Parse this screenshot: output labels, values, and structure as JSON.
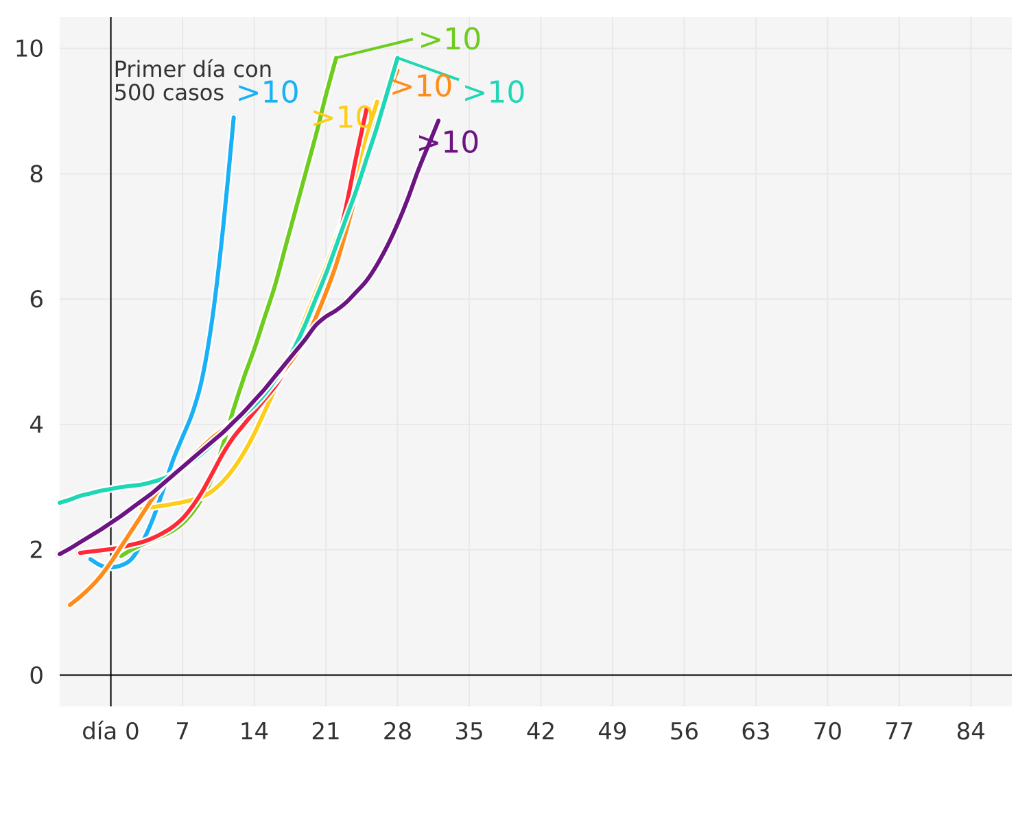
{
  "chart_data": {
    "type": "line",
    "title": "",
    "xlabel": "",
    "ylabel": "",
    "xlim": [
      -5,
      88
    ],
    "ylim": [
      -0.5,
      10.5
    ],
    "grid": true,
    "x_ticks": [
      {
        "value": 0,
        "label": "día 0"
      },
      {
        "value": 7,
        "label": "7"
      },
      {
        "value": 14,
        "label": "14"
      },
      {
        "value": 21,
        "label": "21"
      },
      {
        "value": 28,
        "label": "28"
      },
      {
        "value": 35,
        "label": "35"
      },
      {
        "value": 42,
        "label": "42"
      },
      {
        "value": 49,
        "label": "49"
      },
      {
        "value": 56,
        "label": "56"
      },
      {
        "value": 63,
        "label": "63"
      },
      {
        "value": 70,
        "label": "70"
      },
      {
        "value": 77,
        "label": "77"
      },
      {
        "value": 84,
        "label": "84"
      }
    ],
    "y_ticks": [
      {
        "value": 0,
        "label": "0"
      },
      {
        "value": 2,
        "label": "2"
      },
      {
        "value": 4,
        "label": "4"
      },
      {
        "value": 6,
        "label": "6"
      },
      {
        "value": 8,
        "label": "8"
      },
      {
        "value": 10,
        "label": "10"
      }
    ],
    "annotation": {
      "lines": [
        "Primer día con",
        "500 casos"
      ],
      "x": 0
    },
    "series": [
      {
        "color": "#1ab0f5",
        "label": ">10",
        "points": [
          [
            -2,
            1.85
          ],
          [
            -1,
            1.75
          ],
          [
            0,
            1.72
          ],
          [
            1,
            1.75
          ],
          [
            2,
            1.85
          ],
          [
            3,
            2.1
          ],
          [
            4,
            2.45
          ],
          [
            5,
            2.9
          ],
          [
            6,
            3.4
          ],
          [
            7,
            3.8
          ],
          [
            8,
            4.2
          ],
          [
            9,
            4.8
          ],
          [
            10,
            5.8
          ],
          [
            11,
            7.2
          ],
          [
            12,
            8.9
          ]
        ],
        "label_at": [
          12.2,
          9.3
        ]
      },
      {
        "color": "#6dcc1e",
        "label": ">10",
        "points": [
          [
            1,
            1.9
          ],
          [
            2,
            2.0
          ],
          [
            3,
            2.08
          ],
          [
            4,
            2.15
          ],
          [
            5,
            2.22
          ],
          [
            6,
            2.3
          ],
          [
            7,
            2.42
          ],
          [
            8,
            2.6
          ],
          [
            9,
            2.85
          ],
          [
            10,
            3.2
          ],
          [
            11,
            3.7
          ],
          [
            12,
            4.25
          ],
          [
            13,
            4.75
          ],
          [
            14,
            5.2
          ],
          [
            15,
            5.7
          ],
          [
            16,
            6.2
          ],
          [
            17,
            6.8
          ],
          [
            18,
            7.4
          ],
          [
            19,
            8.0
          ],
          [
            20,
            8.6
          ],
          [
            21,
            9.25
          ],
          [
            22,
            9.85
          ]
        ],
        "leader": [
          [
            22,
            9.85
          ],
          [
            29.5,
            10.15
          ]
        ],
        "label_at": [
          30,
          10.15
        ]
      },
      {
        "color": "#ffcc1a",
        "label": ">10",
        "points": [
          [
            3,
            2.65
          ],
          [
            4,
            2.68
          ],
          [
            5,
            2.7
          ],
          [
            6,
            2.73
          ],
          [
            7,
            2.76
          ],
          [
            8,
            2.8
          ],
          [
            9,
            2.85
          ],
          [
            10,
            2.95
          ],
          [
            11,
            3.1
          ],
          [
            12,
            3.3
          ],
          [
            13,
            3.55
          ],
          [
            14,
            3.85
          ],
          [
            15,
            4.2
          ],
          [
            16,
            4.55
          ],
          [
            17,
            4.9
          ],
          [
            18,
            5.3
          ],
          [
            19,
            5.7
          ],
          [
            20,
            6.1
          ],
          [
            21,
            6.5
          ],
          [
            22,
            6.95
          ],
          [
            23,
            7.45
          ],
          [
            24,
            8.0
          ],
          [
            25,
            8.6
          ],
          [
            26,
            9.15
          ]
        ],
        "label_at": [
          19.5,
          8.9
        ]
      },
      {
        "color": "#ff2a35",
        "label": "",
        "points": [
          [
            -3,
            1.95
          ],
          [
            -2,
            1.97
          ],
          [
            -1,
            1.99
          ],
          [
            0,
            2.01
          ],
          [
            1,
            2.04
          ],
          [
            2,
            2.08
          ],
          [
            3,
            2.12
          ],
          [
            4,
            2.18
          ],
          [
            5,
            2.26
          ],
          [
            6,
            2.36
          ],
          [
            7,
            2.5
          ],
          [
            8,
            2.7
          ],
          [
            9,
            2.95
          ],
          [
            10,
            3.25
          ],
          [
            11,
            3.55
          ],
          [
            12,
            3.8
          ],
          [
            13,
            4.0
          ],
          [
            14,
            4.2
          ],
          [
            15,
            4.4
          ],
          [
            16,
            4.6
          ],
          [
            17,
            4.85
          ],
          [
            18,
            5.15
          ],
          [
            19,
            5.45
          ],
          [
            20,
            5.8
          ],
          [
            21,
            6.25
          ],
          [
            22,
            6.8
          ],
          [
            23,
            7.5
          ],
          [
            24,
            8.3
          ],
          [
            25,
            9.05
          ]
        ]
      },
      {
        "color": "#ff8c1a",
        "label": ">10",
        "points": [
          [
            -4,
            1.12
          ],
          [
            -3,
            1.25
          ],
          [
            -2,
            1.4
          ],
          [
            -1,
            1.58
          ],
          [
            0,
            1.8
          ],
          [
            1,
            2.05
          ],
          [
            2,
            2.3
          ],
          [
            3,
            2.55
          ],
          [
            4,
            2.8
          ],
          [
            5,
            3.02
          ],
          [
            6,
            3.2
          ],
          [
            7,
            3.35
          ],
          [
            8,
            3.5
          ],
          [
            9,
            3.65
          ],
          [
            10,
            3.8
          ],
          [
            11,
            3.92
          ],
          [
            12,
            4.05
          ],
          [
            13,
            4.2
          ],
          [
            14,
            4.35
          ],
          [
            15,
            4.5
          ],
          [
            16,
            4.68
          ],
          [
            17,
            4.88
          ],
          [
            18,
            5.1
          ],
          [
            19,
            5.35
          ],
          [
            20,
            5.7
          ],
          [
            21,
            6.1
          ],
          [
            22,
            6.55
          ],
          [
            23,
            7.1
          ],
          [
            24,
            7.7
          ],
          [
            25,
            8.3
          ],
          [
            26,
            8.85
          ],
          [
            27,
            9.25
          ],
          [
            28,
            9.65
          ]
        ],
        "label_at": [
          27.2,
          9.4
        ]
      },
      {
        "color": "#1fd6b5",
        "label": ">10",
        "points": [
          [
            -5,
            2.75
          ],
          [
            -4,
            2.8
          ],
          [
            -3,
            2.86
          ],
          [
            -2,
            2.9
          ],
          [
            -1,
            2.94
          ],
          [
            0,
            2.97
          ],
          [
            1,
            3.0
          ],
          [
            2,
            3.02
          ],
          [
            3,
            3.04
          ],
          [
            4,
            3.08
          ],
          [
            5,
            3.13
          ],
          [
            6,
            3.2
          ],
          [
            7,
            3.3
          ],
          [
            8,
            3.42
          ],
          [
            9,
            3.55
          ],
          [
            10,
            3.7
          ],
          [
            11,
            3.85
          ],
          [
            12,
            4.0
          ],
          [
            13,
            4.15
          ],
          [
            14,
            4.3
          ],
          [
            15,
            4.48
          ],
          [
            16,
            4.7
          ],
          [
            17,
            4.95
          ],
          [
            18,
            5.25
          ],
          [
            19,
            5.6
          ],
          [
            20,
            6.0
          ],
          [
            21,
            6.4
          ],
          [
            22,
            6.85
          ],
          [
            23,
            7.3
          ],
          [
            24,
            7.75
          ],
          [
            25,
            8.25
          ],
          [
            26,
            8.75
          ],
          [
            27,
            9.3
          ],
          [
            28,
            9.85
          ]
        ],
        "leader": [
          [
            28,
            9.85
          ],
          [
            34,
            9.5
          ]
        ],
        "label_at": [
          34.3,
          9.3
        ]
      },
      {
        "color": "#6b1482",
        "label": ">10",
        "points": [
          [
            -5,
            1.93
          ],
          [
            -4,
            2.02
          ],
          [
            -3,
            2.12
          ],
          [
            -2,
            2.22
          ],
          [
            -1,
            2.32
          ],
          [
            0,
            2.43
          ],
          [
            1,
            2.54
          ],
          [
            2,
            2.66
          ],
          [
            3,
            2.78
          ],
          [
            4,
            2.9
          ],
          [
            5,
            3.04
          ],
          [
            6,
            3.18
          ],
          [
            7,
            3.32
          ],
          [
            8,
            3.46
          ],
          [
            9,
            3.6
          ],
          [
            10,
            3.74
          ],
          [
            11,
            3.88
          ],
          [
            12,
            4.04
          ],
          [
            13,
            4.2
          ],
          [
            14,
            4.38
          ],
          [
            15,
            4.56
          ],
          [
            16,
            4.76
          ],
          [
            17,
            4.96
          ],
          [
            18,
            5.16
          ],
          [
            19,
            5.36
          ],
          [
            20,
            5.58
          ],
          [
            21,
            5.72
          ],
          [
            22,
            5.82
          ],
          [
            23,
            5.95
          ],
          [
            24,
            6.12
          ],
          [
            25,
            6.3
          ],
          [
            26,
            6.55
          ],
          [
            27,
            6.85
          ],
          [
            28,
            7.2
          ],
          [
            29,
            7.6
          ],
          [
            30,
            8.05
          ],
          [
            31,
            8.45
          ],
          [
            32,
            8.85
          ]
        ],
        "label_at": [
          29.8,
          8.5
        ]
      }
    ]
  }
}
